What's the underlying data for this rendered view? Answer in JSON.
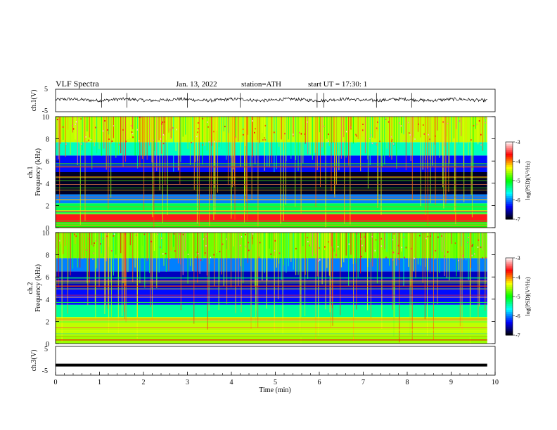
{
  "header": {
    "title": "VLF Spectra",
    "date": "Jan. 13, 2022",
    "station": "station=ATH",
    "start": "start UT =  17:30: 1"
  },
  "chart_data": [
    {
      "type": "line",
      "id": "ch1",
      "ylabel": "ch.1(V)",
      "ylim": [
        -5,
        5
      ],
      "yticks": [
        "5",
        "-5"
      ],
      "xlim": [
        0,
        10
      ],
      "baseline": 0.3,
      "spike_times": [
        1.05,
        1.62,
        3.0,
        4.2,
        5.95,
        6.1,
        7.3,
        8.1
      ]
    },
    {
      "type": "heatmap",
      "id": "ch1-spectrogram",
      "ylabel": "ch.1\nFrequency (kHz)",
      "xlim": [
        0,
        10
      ],
      "ylim": [
        0,
        10
      ],
      "data_xmax": 9.82,
      "yticks": [
        "0",
        "2",
        "4",
        "6",
        "8",
        "10"
      ],
      "colorbar": {
        "label": "log(PSD)(V²/Hz)",
        "range": [
          -7,
          -3
        ],
        "ticks": [
          "-3",
          "-4",
          "-5",
          "-6",
          "-7"
        ]
      },
      "bands": [
        {
          "f0": 0,
          "f1": 0.5,
          "level": -5.0
        },
        {
          "f0": 0.5,
          "f1": 1.2,
          "level": -3.6
        },
        {
          "f0": 1.2,
          "f1": 2.2,
          "level": -5.2
        },
        {
          "f0": 2.2,
          "f1": 3.0,
          "level": -6.0
        },
        {
          "f0": 3.0,
          "f1": 5.0,
          "level": -6.9
        },
        {
          "f0": 5.0,
          "f1": 6.5,
          "level": -6.3
        },
        {
          "f0": 6.5,
          "f1": 7.7,
          "level": -5.5
        },
        {
          "f0": 7.7,
          "f1": 10,
          "level": -4.5
        }
      ]
    },
    {
      "type": "heatmap",
      "id": "ch2-spectrogram",
      "ylabel": "ch.2\nFrequency (kHz)",
      "xlim": [
        0,
        10
      ],
      "ylim": [
        0,
        10
      ],
      "data_xmax": 9.82,
      "yticks": [
        "0",
        "2",
        "4",
        "6",
        "8",
        "10"
      ],
      "colorbar": {
        "label": "log(PSD)(V²/Hz)",
        "range": [
          -7,
          -3
        ],
        "ticks": [
          "-3",
          "-4",
          "-5",
          "-6",
          "-7"
        ]
      },
      "bands": [
        {
          "f0": 0,
          "f1": 0.6,
          "level": -4.6
        },
        {
          "f0": 0.6,
          "f1": 2.4,
          "level": -4.5
        },
        {
          "f0": 2.4,
          "f1": 3.5,
          "level": -5.4
        },
        {
          "f0": 3.5,
          "f1": 5.0,
          "level": -6.3
        },
        {
          "f0": 5.0,
          "f1": 6.5,
          "level": -6.5
        },
        {
          "f0": 6.5,
          "f1": 7.7,
          "level": -6.0
        },
        {
          "f0": 7.7,
          "f1": 10,
          "level": -4.7
        }
      ]
    },
    {
      "type": "line",
      "id": "ch3",
      "ylabel": "ch.3(V)",
      "ylim": [
        -5,
        5
      ],
      "yticks": [
        "5",
        "-5"
      ],
      "xlim": [
        0,
        10
      ],
      "baseline": -1.5,
      "xticks": [
        "0",
        "1",
        "2",
        "3",
        "4",
        "5",
        "6",
        "7",
        "8",
        "9",
        "10"
      ],
      "xlabel": "Time (min)"
    }
  ],
  "colors": {
    "scale": [
      "#000000",
      "#0000ff",
      "#00ffff",
      "#00ff00",
      "#ffff00",
      "#ff0000",
      "#ffffff"
    ]
  }
}
